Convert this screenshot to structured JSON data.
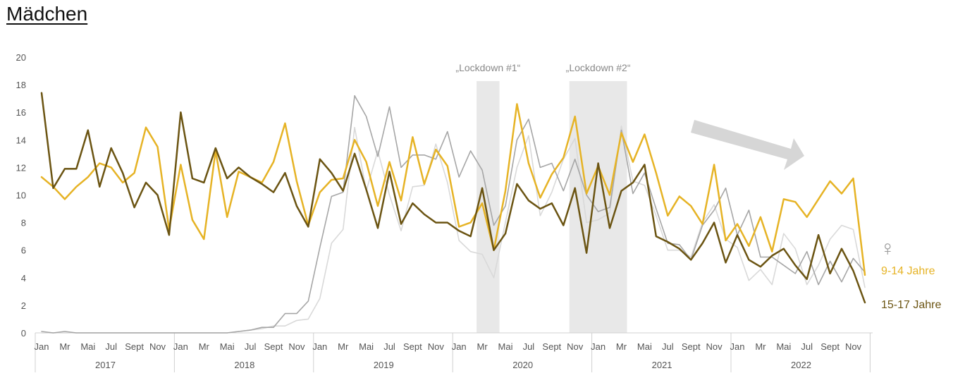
{
  "chart_data": {
    "type": "line",
    "title": "Mädchen",
    "y_ticks": [
      0,
      2,
      4,
      6,
      8,
      10,
      12,
      14,
      16,
      18,
      20
    ],
    "ylim": [
      0,
      20
    ],
    "month_labels": [
      "Jan",
      "Mr",
      "Mai",
      "Jul",
      "Sept",
      "Nov"
    ],
    "years": [
      "2017",
      "2018",
      "2019",
      "2020",
      "2021",
      "2022"
    ],
    "grid": false,
    "annotations": [
      {
        "text": "„Lockdown #1“",
        "start": "2020-03",
        "end": "2020-04"
      },
      {
        "text": "„Lockdown #2“",
        "start": "2020-11",
        "end": "2021-03"
      }
    ],
    "trend_arrow": "decreasing",
    "legend_symbol": "♀",
    "series": [
      {
        "name": "9-14 Jahre",
        "color": "#E6B325",
        "width": 2.5,
        "values": [
          11.3,
          10.6,
          9.7,
          10.6,
          11.3,
          12.3,
          12.0,
          10.9,
          11.6,
          14.9,
          13.5,
          7.5,
          12.2,
          8.2,
          6.8,
          13.2,
          8.4,
          11.7,
          11.3,
          10.9,
          12.4,
          15.2,
          11.0,
          7.8,
          10.2,
          11.1,
          11.2,
          14.0,
          12.4,
          9.2,
          12.4,
          9.6,
          14.2,
          10.8,
          13.3,
          12.1,
          7.7,
          8.0,
          9.4,
          6.0,
          10.3,
          16.6,
          12.3,
          9.8,
          11.5,
          12.7,
          15.7,
          10.1,
          12.1,
          10.0,
          14.5,
          12.4,
          14.4,
          11.6,
          8.5,
          9.9,
          9.2,
          7.9,
          12.2,
          6.7,
          7.9,
          6.3,
          8.4,
          5.9,
          9.7,
          9.5,
          8.4,
          9.7,
          11.0,
          10.1,
          11.2,
          4.2
        ]
      },
      {
        "name": "15-17 Jahre",
        "color": "#6B5412",
        "width": 2.5,
        "values": [
          17.4,
          10.5,
          11.9,
          11.9,
          14.7,
          10.6,
          13.4,
          11.6,
          9.1,
          10.9,
          10.0,
          7.1,
          16.0,
          11.2,
          10.9,
          13.4,
          11.2,
          12.0,
          11.3,
          10.8,
          10.2,
          11.6,
          9.2,
          7.7,
          12.6,
          11.6,
          10.3,
          13.0,
          10.4,
          7.6,
          11.7,
          7.9,
          9.4,
          8.6,
          8.0,
          8.0,
          7.4,
          7.0,
          10.5,
          6.0,
          7.2,
          10.8,
          9.6,
          9.0,
          9.4,
          7.8,
          10.5,
          5.8,
          12.3,
          7.6,
          10.3,
          10.9,
          12.2,
          7.0,
          6.6,
          6.1,
          5.3,
          6.5,
          8.0,
          5.1,
          7.1,
          5.3,
          4.8,
          5.6,
          6.1,
          4.9,
          3.9,
          7.1,
          4.3,
          6.1,
          4.5,
          2.2
        ]
      },
      {
        "name": "",
        "color": "#A6A6A6",
        "width": 1.6,
        "values": [
          0.1,
          0.0,
          0.1,
          0.0,
          0.0,
          0.0,
          0.0,
          0.0,
          0.0,
          0.0,
          0.0,
          0.0,
          0.0,
          0.0,
          0.0,
          0.0,
          0.0,
          0.1,
          0.2,
          0.4,
          0.4,
          1.4,
          1.4,
          2.3,
          6.2,
          9.9,
          10.2,
          17.2,
          15.7,
          12.8,
          16.4,
          12.0,
          12.9,
          12.9,
          12.6,
          14.6,
          11.3,
          13.2,
          11.8,
          7.8,
          9.2,
          14.0,
          15.5,
          12.0,
          12.3,
          10.3,
          12.6,
          10.0,
          8.8,
          9.1,
          14.7,
          10.1,
          11.6,
          9.0,
          6.5,
          6.4,
          5.3,
          7.8,
          8.9,
          10.5,
          7.1,
          8.9,
          5.5,
          5.5,
          4.9,
          4.3,
          5.9,
          3.5,
          5.2,
          3.7,
          5.4,
          4.4
        ]
      },
      {
        "name": "",
        "color": "#D9D9D9",
        "width": 1.6,
        "values": [
          0.0,
          0.0,
          0.0,
          0.0,
          0.0,
          0.0,
          0.0,
          0.0,
          0.0,
          0.0,
          0.0,
          0.0,
          0.0,
          0.0,
          0.0,
          0.0,
          0.0,
          0.1,
          0.2,
          0.3,
          0.5,
          0.5,
          0.9,
          1.0,
          2.5,
          6.5,
          7.5,
          14.9,
          10.3,
          13.2,
          10.0,
          7.4,
          10.6,
          10.7,
          13.7,
          10.9,
          6.7,
          5.9,
          5.7,
          4.0,
          8.0,
          12.0,
          14.3,
          8.5,
          10.2,
          12.6,
          14.1,
          8.0,
          8.2,
          8.7,
          15.0,
          11.0,
          10.7,
          8.5,
          6.0,
          6.0,
          5.5,
          8.0,
          9.3,
          6.8,
          6.2,
          3.8,
          4.6,
          3.5,
          7.2,
          6.1,
          3.5,
          4.9,
          6.8,
          7.8,
          7.5,
          3.3
        ]
      }
    ]
  }
}
